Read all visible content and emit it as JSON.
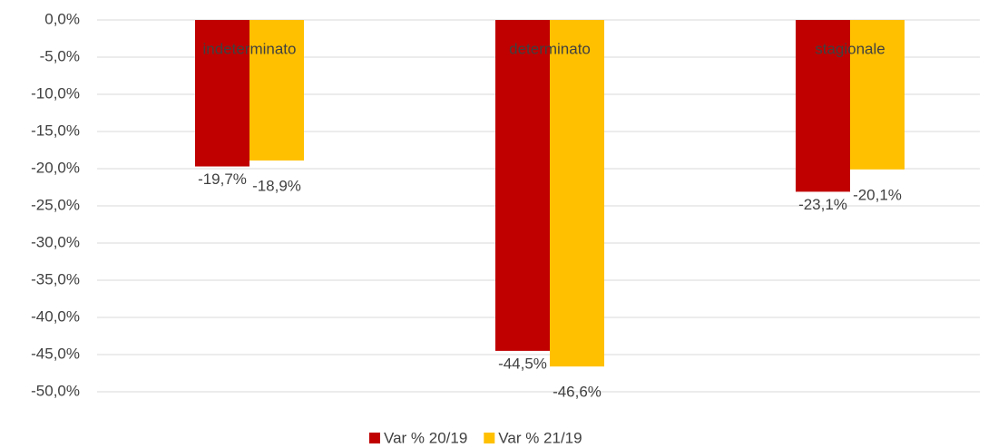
{
  "chart_data": {
    "type": "bar",
    "categories": [
      "indeterminato",
      "determinato",
      "stagionale"
    ],
    "series": [
      {
        "name": "Var % 20/19",
        "color": "#c00000",
        "values": [
          -19.7,
          -44.5,
          -23.1
        ],
        "value_labels": [
          "-19,7%",
          "-44,5%",
          "-23,1%"
        ]
      },
      {
        "name": "Var % 21/19",
        "color": "#ffc000",
        "values": [
          -18.9,
          -46.6,
          -20.1
        ],
        "value_labels": [
          "-18,9%",
          "-46,6%",
          "-20,1%"
        ]
      }
    ],
    "ylim": [
      -50,
      0
    ],
    "yticks": [
      {
        "value": 0,
        "label": "0,0%"
      },
      {
        "value": -5,
        "label": "-5,0%"
      },
      {
        "value": -10,
        "label": "-10,0%"
      },
      {
        "value": -15,
        "label": "-15,0%"
      },
      {
        "value": -20,
        "label": "-20,0%"
      },
      {
        "value": -25,
        "label": "-25,0%"
      },
      {
        "value": -30,
        "label": "-30,0%"
      },
      {
        "value": -35,
        "label": "-35,0%"
      },
      {
        "value": -40,
        "label": "-40,0%"
      },
      {
        "value": -45,
        "label": "-45,0%"
      },
      {
        "value": -50,
        "label": "-50,0%"
      }
    ],
    "grid": true,
    "legend": "bottom"
  }
}
